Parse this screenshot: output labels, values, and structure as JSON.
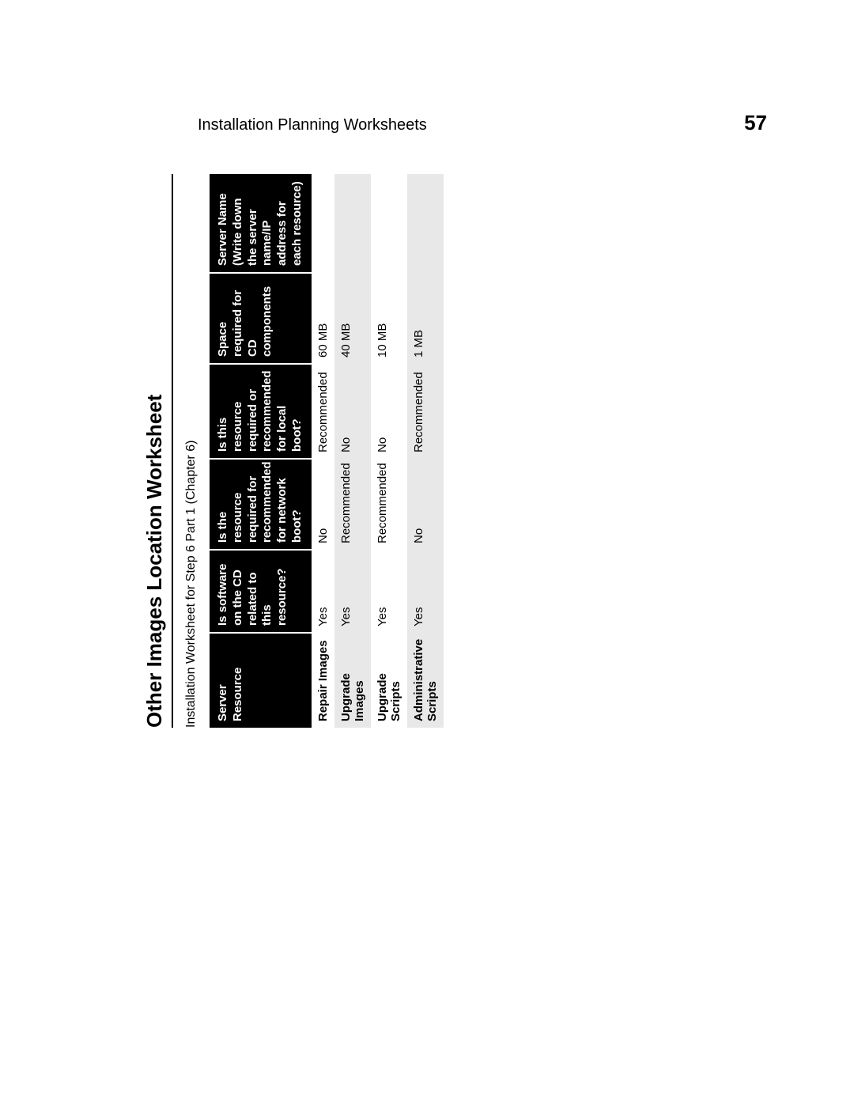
{
  "header": {
    "title": "Installation Planning Worksheets",
    "page_number": "57"
  },
  "section": {
    "title": "Other Images Location Worksheet",
    "subtitle": "Installation Worksheet for Step 6 Part 1 (Chapter 6)"
  },
  "table": {
    "type": "table",
    "background_color": "#ffffff",
    "header_bg": "#000000",
    "header_fg": "#ffffff",
    "row_alt_bg": "#e8e8e8",
    "font_size_pt": 11,
    "columns": [
      "Server Resource",
      "Is software on the CD related to this resource?",
      "Is the resource required for recommended for network boot?",
      "Is this resource required or recommended for local boot?",
      "Space required for CD components",
      "Server Name (Write down the server name/IP address for each resource)"
    ],
    "rows": [
      {
        "name": "Repair Images",
        "cd": "Yes",
        "net": "No",
        "local": "Recommended",
        "space": "60 MB",
        "server": ""
      },
      {
        "name": "Upgrade Images",
        "cd": "Yes",
        "net": "Recommended",
        "local": "No",
        "space": "40 MB",
        "server": ""
      },
      {
        "name": "Upgrade Scripts",
        "cd": "Yes",
        "net": "Recommended",
        "local": "No",
        "space": "10 MB",
        "server": ""
      },
      {
        "name": "Administrative Scripts",
        "cd": "Yes",
        "net": "No",
        "local": "Recommended",
        "space": "1 MB",
        "server": ""
      }
    ]
  }
}
